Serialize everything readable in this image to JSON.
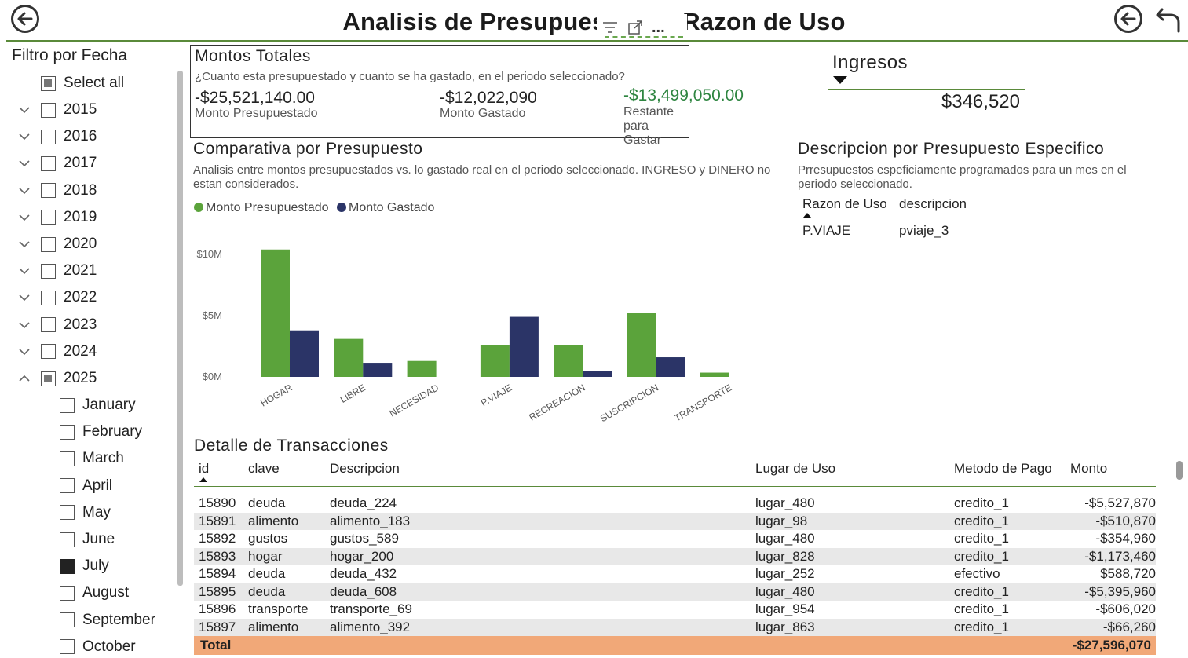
{
  "header": {
    "title": "Analisis de Presupuesto por Razon de Uso",
    "back_icon": "arrow-left-circle",
    "reset_icon": "undo-arrow"
  },
  "visual_header": {
    "filter_icon": "filter-icon",
    "focus_icon": "focus-mode-icon",
    "more_label": "..."
  },
  "slicer": {
    "title": "Filtro por Fecha",
    "select_all": "Select all",
    "years": [
      "2015",
      "2016",
      "2017",
      "2018",
      "2019",
      "2020",
      "2021",
      "2022",
      "2023",
      "2024",
      "2025"
    ],
    "months": [
      "January",
      "February",
      "March",
      "April",
      "May",
      "June",
      "July",
      "August",
      "September",
      "October"
    ],
    "selected_month": "July",
    "expanded_year": "2025"
  },
  "montos": {
    "title": "Montos Totales",
    "subtitle": "¿Cuanto esta presupuestado y cuanto se ha gastado, en el periodo seleccionado?",
    "presupuestado_value": "-$25,521,140.00",
    "presupuestado_label": "Monto Presupuestado",
    "gastado_value": "-$12,022,090",
    "gastado_label": "Monto Gastado",
    "restante_value": "-$13,499,050.00",
    "restante_label": "Restante para Gastar",
    "restante_color": "#2e8540"
  },
  "ingresos": {
    "title": "Ingresos",
    "value": "$346,520"
  },
  "comparativa": {
    "title": "Comparativa por Presupuesto",
    "subtitle": "Analisis entre montos presupuestados vs. lo gastado real en el periodo seleccionado. INGRESO y DINERO no estan considerados."
  },
  "chart_data": {
    "type": "bar",
    "categories": [
      "HOGAR",
      "LIBRE",
      "NECESIDAD",
      "P.VIAJE",
      "RECREACION",
      "SUSCRIPCION",
      "TRANSPORTE"
    ],
    "series": [
      {
        "name": "Monto Presupuestado",
        "color": "#5ba33b",
        "values": [
          10.4,
          3.1,
          1.3,
          2.6,
          2.6,
          5.2,
          0.35
        ]
      },
      {
        "name": "Monto Gastado",
        "color": "#2b3467",
        "values": [
          3.8,
          1.15,
          0,
          4.9,
          0.5,
          1.6,
          0
        ]
      }
    ],
    "yticks": [
      "$0M",
      "$5M",
      "$10M"
    ],
    "ylim": [
      0,
      12
    ],
    "legend": "top-left",
    "grid": false
  },
  "descripcion": {
    "title": "Descripcion por Presupuesto Especifico",
    "subtitle": "Prresupuestos espeficiamente programados para un mes en el periodo seleccionado.",
    "columns": [
      "Razon de Uso",
      "descripcion"
    ],
    "rows": [
      [
        "P.VIAJE",
        "pviaje_3"
      ]
    ]
  },
  "transacciones": {
    "title": "Detalle de Transacciones",
    "columns": [
      "id",
      "clave",
      "Descripcion",
      "Lugar de Uso",
      "Metodo de Pago",
      "Monto"
    ],
    "rows": [
      [
        "15890",
        "deuda",
        "deuda_224",
        "lugar_480",
        "credito_1",
        "-$5,527,870"
      ],
      [
        "15891",
        "alimento",
        "alimento_183",
        "lugar_98",
        "credito_1",
        "-$510,870"
      ],
      [
        "15892",
        "gustos",
        "gustos_589",
        "lugar_480",
        "credito_1",
        "-$354,960"
      ],
      [
        "15893",
        "hogar",
        "hogar_200",
        "lugar_828",
        "credito_1",
        "-$1,173,460"
      ],
      [
        "15894",
        "deuda",
        "deuda_432",
        "lugar_252",
        "efectivo",
        "$588,720"
      ],
      [
        "15895",
        "deuda",
        "deuda_608",
        "lugar_480",
        "credito_1",
        "-$5,395,960"
      ],
      [
        "15896",
        "transporte",
        "transporte_69",
        "lugar_954",
        "credito_1",
        "-$606,020"
      ],
      [
        "15897",
        "alimento",
        "alimento_392",
        "lugar_863",
        "credito_1",
        "-$66,260"
      ]
    ],
    "total_label": "Total",
    "total_value": "-$27,596,070"
  }
}
